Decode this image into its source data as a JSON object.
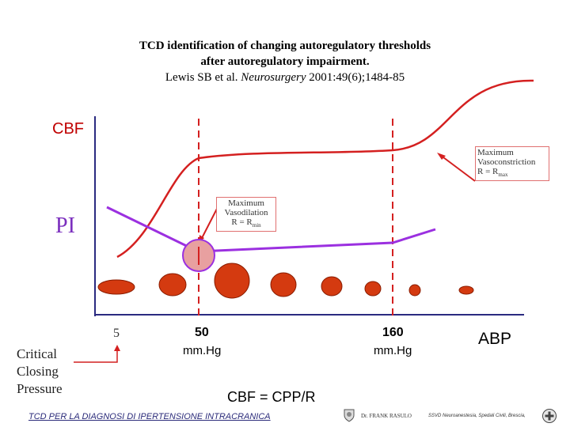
{
  "title": {
    "line1": "TCD identification of changing autoregulatory thresholds",
    "line2": "after autoregulatory impairment.",
    "line3_authors": "Lewis SB et al. ",
    "line3_journal": "Neurosurgery",
    "line3_ref": " 2001:49(6);1484-85"
  },
  "labels": {
    "cbf": "CBF",
    "pi": "PI",
    "abp": "ABP",
    "tick_5": "5",
    "tick_50": "50",
    "tick_160": "160",
    "unit_50": "mm.Hg",
    "unit_160": "mm.Hg",
    "critical_closing_line1": "Critical",
    "critical_closing_line2": "Closing",
    "critical_closing_line3": "Pressure",
    "formula": "CBF = CPP/R"
  },
  "callouts": {
    "vasoconstriction_line1": "Maximum",
    "vasoconstriction_line2": "Vasoconstriction",
    "vasoconstriction_line3": "R = R",
    "vasoconstriction_sub": "max",
    "vasodilation_line1": "Maximum",
    "vasodilation_line2": "Vasodilation",
    "vasodilation_line3": "R = R",
    "vasodilation_sub": "min"
  },
  "footer": {
    "left": "TCD PER LA DIAGNOSI DI  IPERTENSIONE INTRACRANICA",
    "author": "Dr. FRANK RASULO",
    "right": "SSVD Neuroanestesia, Spedali Civili, Brescia,"
  },
  "colors": {
    "cbf_curve": "#d42020",
    "pi_curve": "#9b30e0",
    "vessel_fill": "#d43a10",
    "vessel_stroke": "#8a1c00",
    "axis": "#2a2a80",
    "threshold_line": "#d42020"
  },
  "icons": {
    "logo_left": "crest-logo-icon",
    "logo_right": "hospital-logo-icon"
  }
}
